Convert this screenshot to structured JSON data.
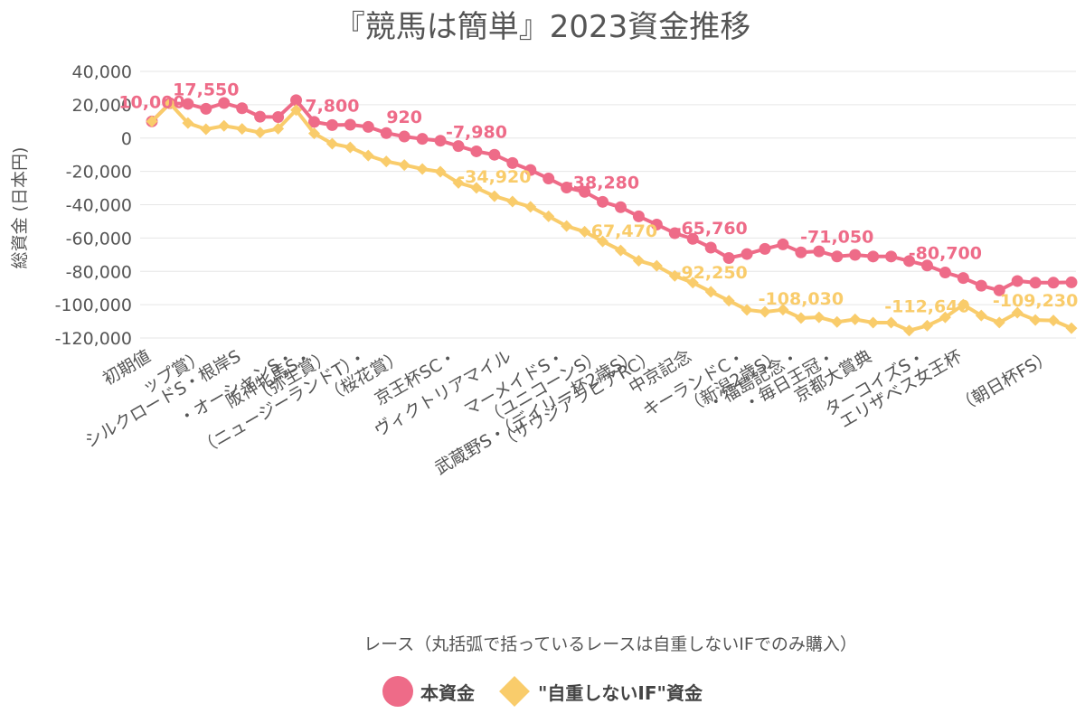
{
  "title": "『競馬は簡単』2023資金推移",
  "x_axis_title": "レース（丸括弧で括っているレースは自重しないIFでのみ購入）",
  "colors": {
    "main": "#ee6b88",
    "if": "#f9cc6b",
    "grid": "#e6e6e6",
    "text": "#555555"
  },
  "legend": [
    {
      "label": "本資金",
      "color": "#ee6b88",
      "shape": "circle"
    },
    {
      "label": "\"自重しないIF\"資金",
      "color": "#f9cc6b",
      "shape": "diamond"
    }
  ],
  "chart_data": {
    "type": "line",
    "title": "『競馬は簡単』2023資金推移",
    "xlabel": "レース（丸括弧で括っているレースは自重しないIFでのみ購入）",
    "ylabel": "総資金 (日本円)",
    "ylim": [
      -120000,
      40000
    ],
    "yticks": [
      40000,
      20000,
      0,
      -20000,
      -40000,
      -60000,
      -80000,
      -100000,
      -120000
    ],
    "ytick_labels": [
      "40,000",
      "20,000",
      "0",
      "-20,000",
      "-40,000",
      "-60,000",
      "-80,000",
      "-100,000",
      "-120,000"
    ],
    "grid": true,
    "legend_position": "bottom",
    "x_tick_labels": [
      {
        "index": 0,
        "label": "初期値"
      },
      {
        "index": 5,
        "label": "シルクロードS・根岸S"
      },
      {
        "index": 10,
        "label": "（弥生賞）"
      },
      {
        "index": 14,
        "label": "（桜花賞）"
      },
      {
        "index": 20,
        "label": "ヴィクトリアマイル"
      },
      {
        "index": 25,
        "label": "（ユニコーンS）"
      },
      {
        "index": 30,
        "label": "中京記念"
      },
      {
        "index": 35,
        "label": "（新潟2歳S）"
      },
      {
        "index": 40,
        "label": "京都大賞典"
      },
      {
        "index": 45,
        "label": "エリザベス女王杯"
      },
      {
        "index": 50,
        "label": "（朝日杯FS）"
      },
      {
        "index": 8,
        "label": "・オーシャンS・"
      },
      {
        "index": 17,
        "label": "京王杯SC・"
      },
      {
        "index": 23,
        "label": "マーメイドS・"
      },
      {
        "index": 33,
        "label": "キーランドC・"
      },
      {
        "index": 38,
        "label": "・毎日王冠・"
      },
      {
        "index": 43,
        "label": "ターコイズS・"
      },
      {
        "index": 12,
        "label": "（ニュージーランドT）・"
      },
      {
        "index": 36,
        "label": "・福島記念・"
      },
      {
        "index": 3,
        "label": "ップ賞）"
      },
      {
        "index": 9,
        "label": "阪神牝馬S・"
      },
      {
        "index": 28,
        "label": "（サウジアラビアRC）"
      },
      {
        "index": 27,
        "label": "武蔵野S・（デイリー杯2歳S）"
      }
    ],
    "series": [
      {
        "name": "本資金",
        "color": "#ee6b88",
        "values": [
          10000,
          20900,
          20500,
          17550,
          21000,
          17900,
          12800,
          12600,
          22700,
          9700,
          7800,
          8000,
          6700,
          3000,
          920,
          -500,
          -1600,
          -4800,
          -7980,
          -10000,
          -15000,
          -19200,
          -24300,
          -29700,
          -32300,
          -38280,
          -41500,
          -47000,
          -51900,
          -57100,
          -60500,
          -65760,
          -72000,
          -69600,
          -66500,
          -63800,
          -68600,
          -68000,
          -71050,
          -70100,
          -71100,
          -71100,
          -73800,
          -76500,
          -80700,
          -84000,
          -88600,
          -91400,
          -85800,
          -86800,
          -86800,
          -86600
        ]
      },
      {
        "name": "\"自重しないIF\"資金",
        "color": "#f9cc6b",
        "values": [
          10000,
          20800,
          9000,
          5300,
          7300,
          5500,
          3300,
          5600,
          16800,
          2800,
          -3400,
          -5600,
          -10500,
          -14000,
          -16200,
          -18600,
          -20200,
          -26900,
          -29900,
          -34920,
          -38100,
          -41300,
          -47000,
          -52800,
          -56200,
          -62000,
          -67470,
          -73600,
          -76700,
          -82700,
          -86800,
          -92250,
          -97600,
          -103100,
          -104300,
          -103000,
          -108030,
          -107600,
          -110400,
          -108800,
          -110800,
          -110800,
          -115500,
          -112640,
          -107600,
          -100000,
          -106500,
          -110700,
          -104800,
          -109230,
          -109500,
          -114100
        ]
      }
    ],
    "data_labels": [
      {
        "series": 0,
        "index": 0,
        "text": "10,000"
      },
      {
        "series": 0,
        "index": 3,
        "text": "17,550"
      },
      {
        "series": 0,
        "index": 10,
        "text": "7,800"
      },
      {
        "series": 0,
        "index": 14,
        "text": "920"
      },
      {
        "series": 0,
        "index": 18,
        "text": "-7,980"
      },
      {
        "series": 0,
        "index": 25,
        "text": "-38,280"
      },
      {
        "series": 0,
        "index": 31,
        "text": "-65,760"
      },
      {
        "series": 0,
        "index": 38,
        "text": "-71,050"
      },
      {
        "series": 0,
        "index": 44,
        "text": "-80,700"
      },
      {
        "series": 1,
        "index": 19,
        "text": "-34,920"
      },
      {
        "series": 1,
        "index": 26,
        "text": "-67,470"
      },
      {
        "series": 1,
        "index": 31,
        "text": "-92,250"
      },
      {
        "series": 1,
        "index": 36,
        "text": "-108,030"
      },
      {
        "series": 1,
        "index": 43,
        "text": "-112,640"
      },
      {
        "series": 1,
        "index": 49,
        "text": "-109,230"
      }
    ]
  }
}
